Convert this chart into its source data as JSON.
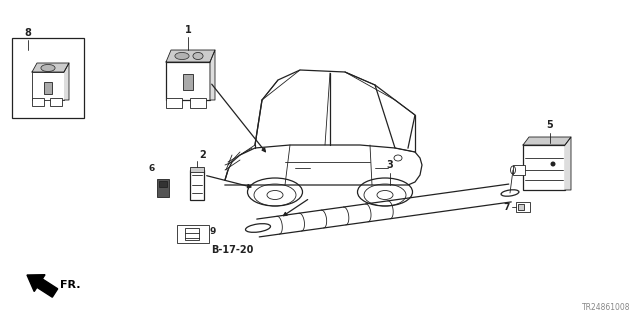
{
  "bg_color": "#ffffff",
  "diagram_color": "#222222",
  "fig_width": 6.4,
  "fig_height": 3.2,
  "watermark": "TR24861008",
  "fr_label": "FR.",
  "ref_label": "B-17-20",
  "dpi": 100
}
